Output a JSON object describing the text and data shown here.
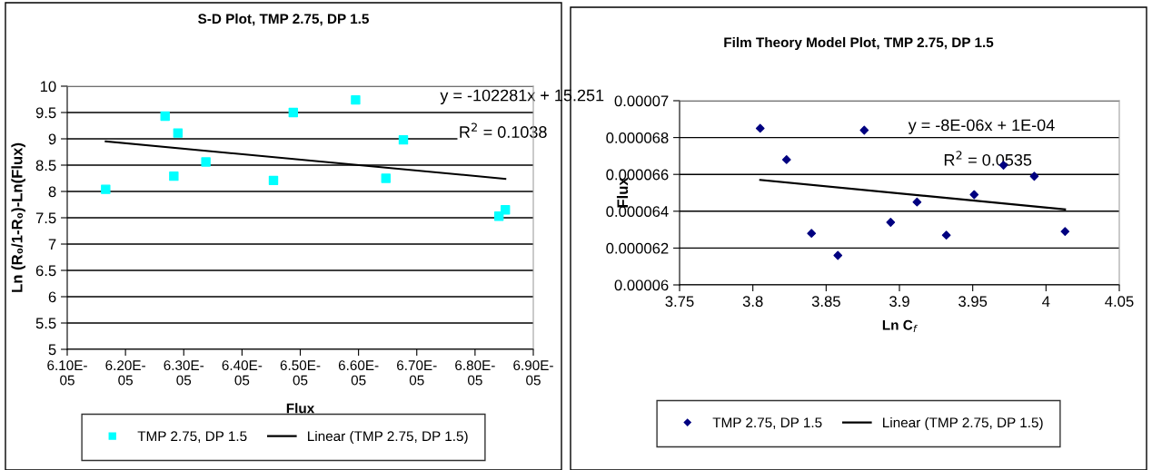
{
  "chart_data": [
    {
      "type": "scatter",
      "title": "S-D Plot, TMP 2.75, DP 1.5",
      "xlabel": "Flux",
      "ylabel": "Ln (R₀/1-R₀)-Ln(Flux)",
      "annotations": [
        "y = -102281x + 15.251",
        "R$^{2}$ = 0.1038"
      ],
      "series": [
        {
          "name": "TMP 2.75, DP 1.5",
          "color": "#00ffff",
          "marker": "square",
          "x": [
            6.166e-05,
            6.268e-05,
            6.283e-05,
            6.29e-05,
            6.338e-05,
            6.454e-05,
            6.488e-05,
            6.595e-05,
            6.647e-05,
            6.677e-05,
            6.841e-05,
            6.852e-05
          ],
          "values": [
            8.04,
            9.43,
            8.29,
            9.11,
            8.56,
            8.21,
            9.5,
            9.74,
            8.25,
            8.98,
            7.53,
            7.65
          ]
        },
        {
          "name": "Linear (TMP 2.75, DP 1.5)",
          "type": "line",
          "color": "#000000",
          "marker": "none",
          "line_style": "solid",
          "x": [
            6.166e-05,
            6.852e-05
          ],
          "values": [
            8.95,
            8.24
          ]
        }
      ],
      "xlim": [
        6.1e-05,
        6.9e-05
      ],
      "xticks": [
        {
          "value": 6.1e-05,
          "label": "6.10E-05"
        },
        {
          "value": 6.2e-05,
          "label": "6.20E-05"
        },
        {
          "value": 6.3e-05,
          "label": "6.30E-05"
        },
        {
          "value": 6.4e-05,
          "label": "6.40E-05"
        },
        {
          "value": 6.5e-05,
          "label": "6.50E-05"
        },
        {
          "value": 6.6e-05,
          "label": "6.60E-05"
        },
        {
          "value": 6.7e-05,
          "label": "6.70E-05"
        },
        {
          "value": 6.8e-05,
          "label": "6.80E-05"
        },
        {
          "value": 6.9e-05,
          "label": "6.90E-05"
        }
      ],
      "ylim": [
        5,
        10
      ],
      "yticks": [
        5,
        5.5,
        6,
        6.5,
        7,
        7.5,
        8,
        8.5,
        9,
        9.5,
        10
      ],
      "grid": "y",
      "legend": "bottom"
    },
    {
      "type": "scatter",
      "title": "Film Theory Model Plot, TMP 2.75, DP 1.5",
      "xlabel": "Ln C$_{f}$",
      "ylabel": "Flux",
      "annotations": [
        "y = -8E-06x + 1E-04",
        "R$^{2}$ = 0.0535"
      ],
      "series": [
        {
          "name": "TMP 2.75, DP 1.5",
          "color": "#000080",
          "marker": "diamond",
          "x": [
            3.805,
            3.823,
            3.84,
            3.858,
            3.876,
            3.894,
            3.912,
            3.932,
            3.951,
            3.971,
            3.992,
            4.013
          ],
          "values": [
            6.85e-05,
            6.68e-05,
            6.28e-05,
            6.16e-05,
            6.84e-05,
            6.34e-05,
            6.45e-05,
            6.27e-05,
            6.49e-05,
            6.65e-05,
            6.59e-05,
            6.29e-05
          ]
        },
        {
          "name": "Linear (TMP 2.75, DP 1.5)",
          "type": "line",
          "color": "#000000",
          "marker": "none",
          "line_style": "solid",
          "x": [
            3.805,
            4.013
          ],
          "values": [
            6.57e-05,
            6.41e-05
          ]
        }
      ],
      "xlim": [
        3.75,
        4.05
      ],
      "xticks": [
        3.75,
        3.8,
        3.85,
        3.9,
        3.95,
        4,
        4.05
      ],
      "ylim": [
        6e-05,
        7e-05
      ],
      "yticks": [
        {
          "value": 6e-05,
          "label": "0.00006"
        },
        {
          "value": 6.2e-05,
          "label": "0.000062"
        },
        {
          "value": 6.4e-05,
          "label": "0.000064"
        },
        {
          "value": 6.6e-05,
          "label": "0.000066"
        },
        {
          "value": 6.8e-05,
          "label": "0.000068"
        },
        {
          "value": 7e-05,
          "label": "0.00007"
        }
      ],
      "grid": "y",
      "legend": "bottom"
    }
  ]
}
